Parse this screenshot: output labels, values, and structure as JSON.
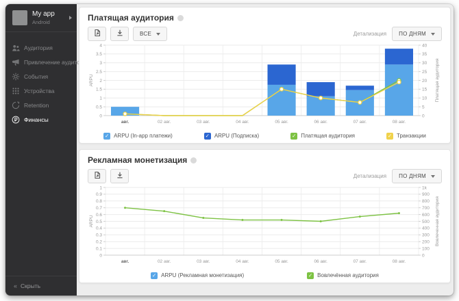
{
  "sidebar": {
    "app": {
      "name": "My app",
      "platform": "Android",
      "icon": "app-icon"
    },
    "items": [
      {
        "id": "audience",
        "label": "Аудитория",
        "icon": "audience-icon",
        "active": false
      },
      {
        "id": "acquisition",
        "label": "Привлечение аудитории",
        "icon": "acquisition-icon",
        "active": false
      },
      {
        "id": "events",
        "label": "События",
        "icon": "events-icon",
        "active": false
      },
      {
        "id": "devices",
        "label": "Устройства",
        "icon": "devices-icon",
        "active": false
      },
      {
        "id": "retention",
        "label": "Retention",
        "icon": "retention-icon",
        "active": false
      },
      {
        "id": "finance",
        "label": "Финансы",
        "icon": "finance-icon",
        "active": true
      }
    ],
    "collapse_label": "Скрыть"
  },
  "panels": [
    {
      "title": "Платящая аудитория",
      "all_label": "ВСЕ",
      "detail_label": "Детализация",
      "detail_value": "ПО ДНЯМ",
      "toolbar_icons": [
        "new-report-icon",
        "download-icon"
      ]
    },
    {
      "title": "Рекламная монетизация",
      "detail_label": "Детализация",
      "detail_value": "ПО ДНЯМ",
      "toolbar_icons": [
        "new-report-icon",
        "download-icon"
      ]
    }
  ],
  "chart_data": [
    {
      "type": "bar+line",
      "title": "Платящая аудитория",
      "categories": [
        "авг.",
        "02 авг.",
        "03 авг.",
        "04 авг.",
        "05 авг.",
        "06 авг.",
        "07 авг.",
        "08 авг."
      ],
      "bar_series": [
        {
          "name": "ARPU (In-app платежи)",
          "color": "#58a6e8",
          "values": [
            0.5,
            0,
            0,
            0,
            1.75,
            1.1,
            1.45,
            2.9
          ]
        },
        {
          "name": "ARPU (Подписка)",
          "color": "#2b66d1",
          "values": [
            0,
            0,
            0,
            0,
            1.15,
            0.8,
            0.25,
            0.9
          ]
        }
      ],
      "line_series": [
        {
          "name": "Платящая аудитория",
          "color": "#7dc243",
          "axis": "right",
          "marker": "circle",
          "values": [
            1,
            0,
            0,
            0,
            15,
            10,
            7.5,
            20
          ]
        },
        {
          "name": "Транзакции",
          "color": "#f0d24b",
          "axis": "right",
          "marker": "circle",
          "values": [
            1,
            0,
            0,
            0,
            15,
            10,
            7.5,
            19
          ]
        }
      ],
      "left_axis": {
        "label": "ARPU",
        "min": 0,
        "max": 4,
        "step": 0.5
      },
      "right_axis": {
        "label": "Платящая аудитория",
        "min": 0,
        "max": 40,
        "step": 5
      },
      "legend": [
        {
          "label": "ARPU (In-app платежи)",
          "color": "#58a6e8"
        },
        {
          "label": "ARPU (Подписка)",
          "color": "#2b66d1"
        },
        {
          "label": "Платящая аудитория",
          "color": "#7dc243"
        },
        {
          "label": "Транзакции",
          "color": "#f0d24b"
        }
      ]
    },
    {
      "type": "line",
      "title": "Рекламная монетизация",
      "categories": [
        "авг.",
        "02 авг.",
        "03 авг.",
        "04 авг.",
        "05 авг.",
        "06 авг.",
        "07 авг.",
        "08 авг."
      ],
      "line_series": [
        {
          "name": "Вовлечённая аудитория",
          "color": "#7dc243",
          "axis": "right",
          "marker": "dot",
          "values": [
            700,
            650,
            550,
            520,
            520,
            500,
            570,
            620
          ]
        }
      ],
      "left_axis": {
        "label": "ARPU",
        "min": 0,
        "max": 1,
        "step": 0.1
      },
      "right_axis": {
        "label": "Вовлеченная аудитория",
        "min": 0,
        "max": 1000,
        "step": 100
      },
      "legend": [
        {
          "label": "ARPU (Рекламная монетизация)",
          "color": "#58a6e8"
        },
        {
          "label": "Вовлечённая аудитория",
          "color": "#7dc243"
        }
      ]
    }
  ]
}
